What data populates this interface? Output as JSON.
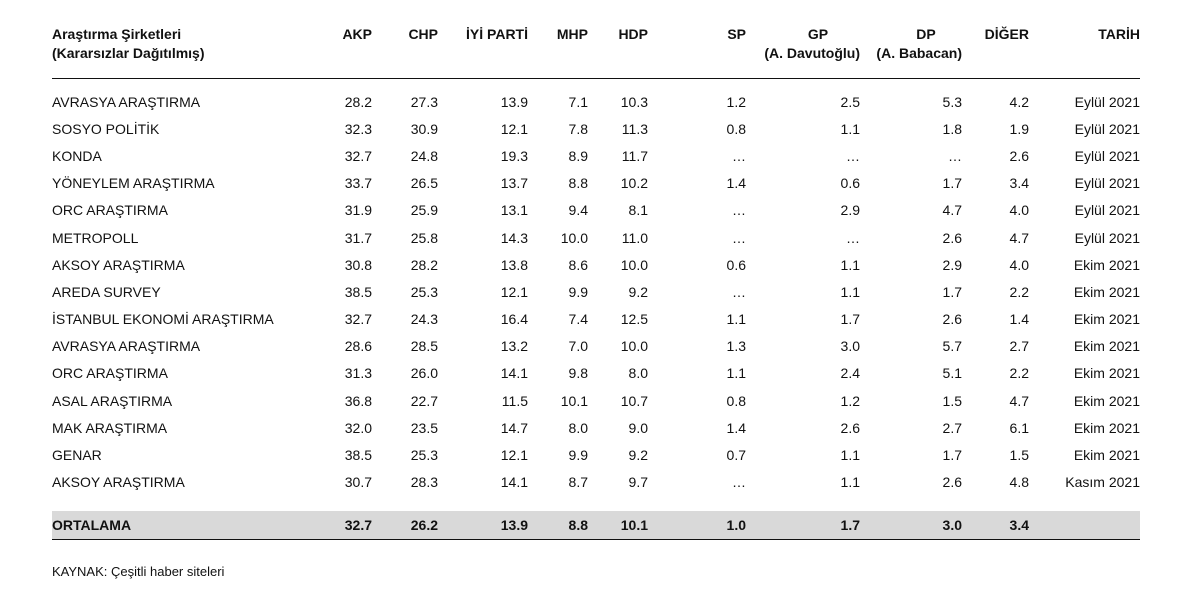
{
  "headers": {
    "col1_line1": "Araştırma Şirketleri",
    "col1_line2": "(Kararsızlar Dağıtılmış)",
    "akp": "AKP",
    "chp": "CHP",
    "iyi": "İYİ PARTİ",
    "mhp": "MHP",
    "hdp": "HDP",
    "sp": "SP",
    "gp_line1": "GP",
    "gp_line2": "(A. Davutoğlu)",
    "dp_line1": "DP",
    "dp_line2": "(A. Babacan)",
    "diger": "DİĞER",
    "tarih": "TARİH"
  },
  "rows": [
    {
      "name": "AVRASYA ARAŞTIRMA",
      "akp": "28.2",
      "chp": "27.3",
      "iyi": "13.9",
      "mhp": "7.1",
      "hdp": "10.3",
      "sp": "1.2",
      "gp": "2.5",
      "dp": "5.3",
      "diger": "4.2",
      "tarih": "Eylül 2021"
    },
    {
      "name": "SOSYO POLİTİK",
      "akp": "32.3",
      "chp": "30.9",
      "iyi": "12.1",
      "mhp": "7.8",
      "hdp": "11.3",
      "sp": "0.8",
      "gp": "1.1",
      "dp": "1.8",
      "diger": "1.9",
      "tarih": "Eylül 2021"
    },
    {
      "name": "KONDA",
      "akp": "32.7",
      "chp": "24.8",
      "iyi": "19.3",
      "mhp": "8.9",
      "hdp": "11.7",
      "sp": "…",
      "gp": "…",
      "dp": "…",
      "diger": "2.6",
      "tarih": "Eylül 2021"
    },
    {
      "name": "YÖNEYLEM ARAŞTIRMA",
      "akp": "33.7",
      "chp": "26.5",
      "iyi": "13.7",
      "mhp": "8.8",
      "hdp": "10.2",
      "sp": "1.4",
      "gp": "0.6",
      "dp": "1.7",
      "diger": "3.4",
      "tarih": "Eylül 2021"
    },
    {
      "name": "ORC ARAŞTIRMA",
      "akp": "31.9",
      "chp": "25.9",
      "iyi": "13.1",
      "mhp": "9.4",
      "hdp": "8.1",
      "sp": "…",
      "gp": "2.9",
      "dp": "4.7",
      "diger": "4.0",
      "tarih": "Eylül 2021"
    },
    {
      "name": "METROPOLL",
      "akp": "31.7",
      "chp": "25.8",
      "iyi": "14.3",
      "mhp": "10.0",
      "hdp": "11.0",
      "sp": "…",
      "gp": "…",
      "dp": "2.6",
      "diger": "4.7",
      "tarih": "Eylül 2021"
    },
    {
      "name": "AKSOY ARAŞTIRMA",
      "akp": "30.8",
      "chp": "28.2",
      "iyi": "13.8",
      "mhp": "8.6",
      "hdp": "10.0",
      "sp": "0.6",
      "gp": "1.1",
      "dp": "2.9",
      "diger": "4.0",
      "tarih": "Ekim 2021"
    },
    {
      "name": "AREDA SURVEY",
      "akp": "38.5",
      "chp": "25.3",
      "iyi": "12.1",
      "mhp": "9.9",
      "hdp": "9.2",
      "sp": "…",
      "gp": "1.1",
      "dp": "1.7",
      "diger": "2.2",
      "tarih": "Ekim 2021"
    },
    {
      "name": "İSTANBUL EKONOMİ ARAŞTIRMA",
      "akp": "32.7",
      "chp": "24.3",
      "iyi": "16.4",
      "mhp": "7.4",
      "hdp": "12.5",
      "sp": "1.1",
      "gp": "1.7",
      "dp": "2.6",
      "diger": "1.4",
      "tarih": "Ekim 2021"
    },
    {
      "name": "AVRASYA ARAŞTIRMA",
      "akp": "28.6",
      "chp": "28.5",
      "iyi": "13.2",
      "mhp": "7.0",
      "hdp": "10.0",
      "sp": "1.3",
      "gp": "3.0",
      "dp": "5.7",
      "diger": "2.7",
      "tarih": "Ekim 2021"
    },
    {
      "name": "ORC ARAŞTIRMA",
      "akp": "31.3",
      "chp": "26.0",
      "iyi": "14.1",
      "mhp": "9.8",
      "hdp": "8.0",
      "sp": "1.1",
      "gp": "2.4",
      "dp": "5.1",
      "diger": "2.2",
      "tarih": "Ekim 2021"
    },
    {
      "name": "ASAL ARAŞTIRMA",
      "akp": "36.8",
      "chp": "22.7",
      "iyi": "11.5",
      "mhp": "10.1",
      "hdp": "10.7",
      "sp": "0.8",
      "gp": "1.2",
      "dp": "1.5",
      "diger": "4.7",
      "tarih": "Ekim 2021"
    },
    {
      "name": "MAK ARAŞTIRMA",
      "akp": "32.0",
      "chp": "23.5",
      "iyi": "14.7",
      "mhp": "8.0",
      "hdp": "9.0",
      "sp": "1.4",
      "gp": "2.6",
      "dp": "2.7",
      "diger": "6.1",
      "tarih": "Ekim 2021"
    },
    {
      "name": "GENAR",
      "akp": "38.5",
      "chp": "25.3",
      "iyi": "12.1",
      "mhp": "9.9",
      "hdp": "9.2",
      "sp": "0.7",
      "gp": "1.1",
      "dp": "1.7",
      "diger": "1.5",
      "tarih": "Ekim 2021"
    },
    {
      "name": "AKSOY ARAŞTIRMA",
      "akp": "30.7",
      "chp": "28.3",
      "iyi": "14.1",
      "mhp": "8.7",
      "hdp": "9.7",
      "sp": "…",
      "gp": "1.1",
      "dp": "2.6",
      "diger": "4.8",
      "tarih": "Kasım 2021"
    }
  ],
  "average": {
    "name": "ORTALAMA",
    "akp": "32.7",
    "chp": "26.2",
    "iyi": "13.9",
    "mhp": "8.8",
    "hdp": "10.1",
    "sp": "1.0",
    "gp": "1.7",
    "dp": "3.0",
    "diger": "3.4",
    "tarih": ""
  },
  "source": "KAYNAK: Çeşitli haber siteleri"
}
